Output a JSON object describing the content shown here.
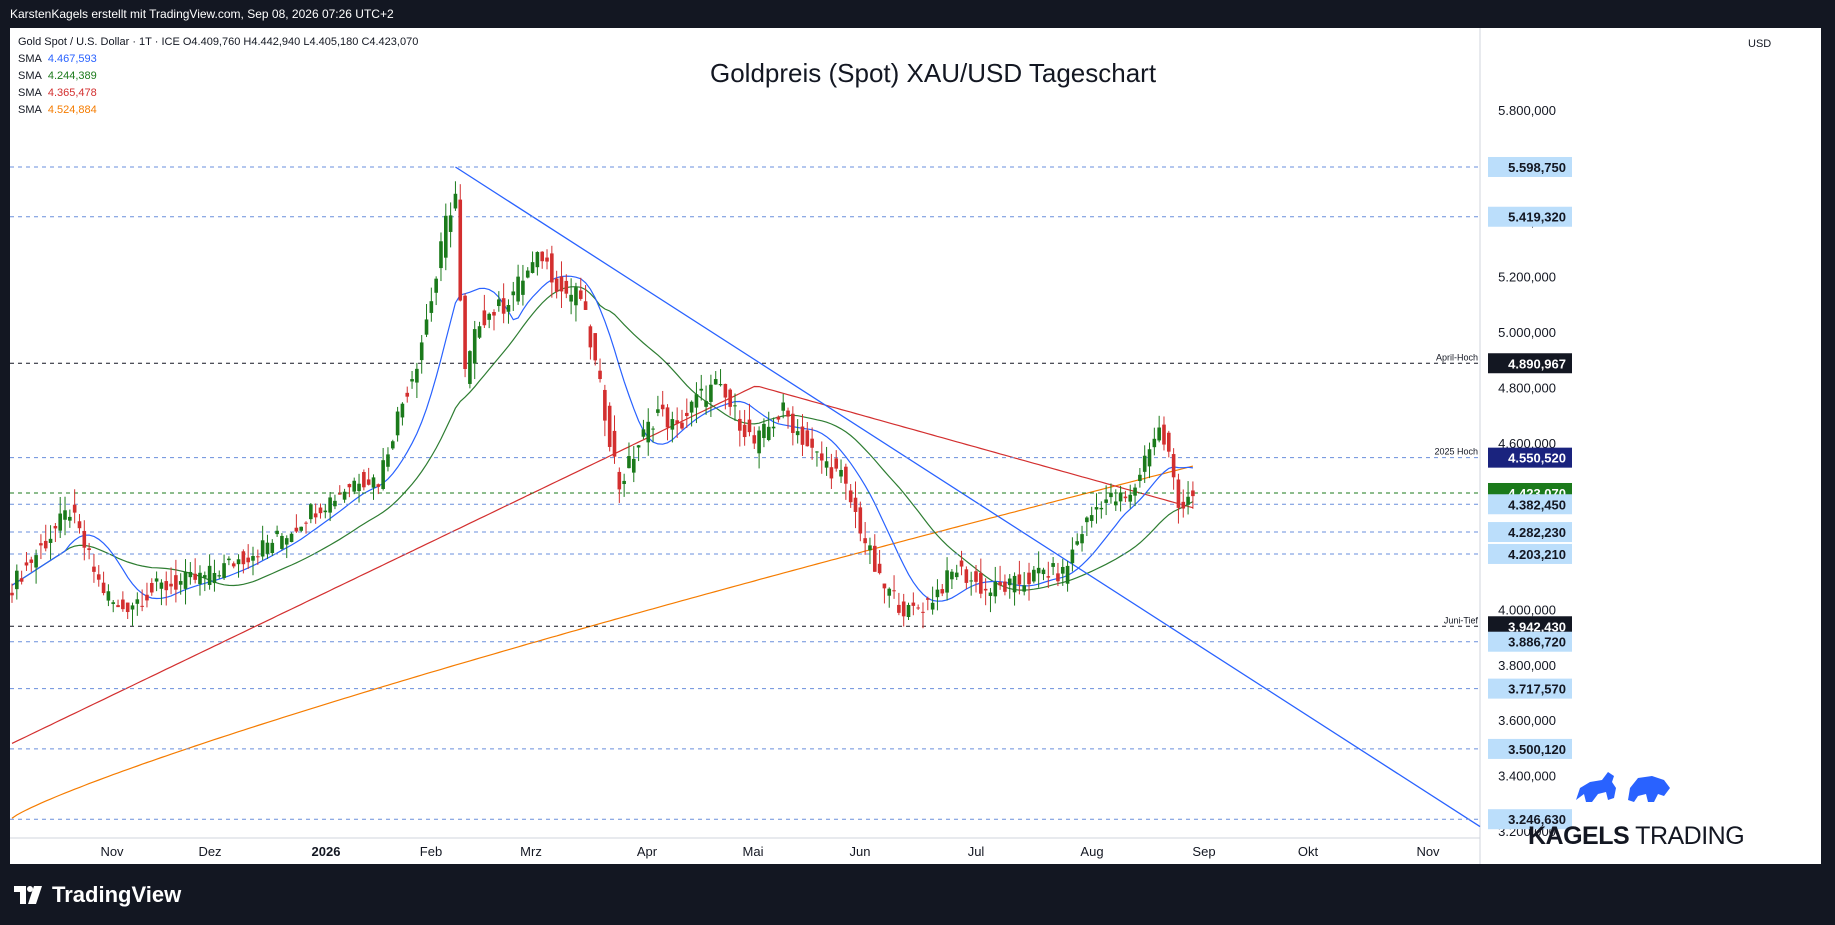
{
  "header": {
    "text": "KarstenKagels erstellt mit TradingView.com, Sep 08, 2026 07:26 UTC+2"
  },
  "legend": {
    "symbol_line": "Gold Spot / U.S. Dollar · 1T · ICE  O4.409,760  H4.442,940  L4.405,180  C4.423,070",
    "smas": [
      {
        "label": "SMA",
        "value": "4.467,593",
        "color": "#2962ff"
      },
      {
        "label": "SMA",
        "value": "4.244,389",
        "color": "#1b7a1b"
      },
      {
        "label": "SMA",
        "value": "4.365,478",
        "color": "#d32f2f"
      },
      {
        "label": "SMA",
        "value": "4.524,884",
        "color": "#f57c00"
      }
    ]
  },
  "axis_unit": "USD",
  "footer": {
    "brand": "TradingView"
  },
  "watermark": {
    "brand_bold": "KAGELS",
    "brand_light": " TRADING"
  },
  "chart_data": {
    "type": "candlestick",
    "title": "Goldpreis (Spot) XAU/USD Tageschart",
    "ylabel": "USD",
    "ylim": [
      3150,
      6100
    ],
    "x_tick_labels": [
      "Nov",
      "Dez",
      "2026",
      "Feb",
      "Mrz",
      "Apr",
      "Mai",
      "Jun",
      "Jul",
      "Aug",
      "Sep",
      "Okt",
      "Nov"
    ],
    "y_tick_labels": [
      "3.200,000",
      "3.400,000",
      "3.600,000",
      "3.800,000",
      "4.000,000",
      "4.200,000",
      "4.400,000",
      "4.600,000",
      "4.800,000",
      "5.000,000",
      "5.200,000",
      "5.400,000",
      "5.600,000",
      "5.800,000"
    ],
    "y_ticks": [
      3200,
      3400,
      3600,
      3800,
      4000,
      4200,
      4400,
      4600,
      4800,
      5000,
      5200,
      5400,
      5600,
      5800
    ],
    "colors": {
      "up": "#1b7a1b",
      "down": "#d32f2f",
      "sma20": "#2962ff",
      "sma50": "#2e7d32",
      "sma100": "#d32f2f",
      "sma200": "#f57c00",
      "trendline": "#2962ff"
    },
    "price_levels": [
      {
        "value": 5598.75,
        "label": "5.598,750",
        "style": "blue",
        "note": ""
      },
      {
        "value": 5419.32,
        "label": "5.419,320",
        "style": "blue",
        "note": ""
      },
      {
        "value": 4890.967,
        "label": "4.890,967",
        "style": "black",
        "note": "April-Hoch"
      },
      {
        "value": 4550.52,
        "label": "4.550,520",
        "style": "navy",
        "note": "2025 Hoch"
      },
      {
        "value": 4423.07,
        "label": "4.423,070",
        "style": "green",
        "note": ""
      },
      {
        "value": 4382.45,
        "label": "4.382,450",
        "style": "blue",
        "note": ""
      },
      {
        "value": 4282.23,
        "label": "4.282,230",
        "style": "blue",
        "note": ""
      },
      {
        "value": 4203.21,
        "label": "4.203,210",
        "style": "blue",
        "note": ""
      },
      {
        "value": 3942.43,
        "label": "3.942,430",
        "style": "black",
        "note": "Juni-Tief"
      },
      {
        "value": 3886.72,
        "label": "3.886,720",
        "style": "blue",
        "note": ""
      },
      {
        "value": 3717.57,
        "label": "3.717,570",
        "style": "blue",
        "note": ""
      },
      {
        "value": 3500.12,
        "label": "3.500,120",
        "style": "blue",
        "note": ""
      },
      {
        "value": 3246.63,
        "label": "3.246,630",
        "style": "blue",
        "note": ""
      }
    ],
    "series": [
      {
        "name": "Gold Spot / U.S. Dollar",
        "close_anchors": [
          [
            0,
            4090
          ],
          [
            12,
            4360
          ],
          [
            18,
            4100
          ],
          [
            22,
            4000
          ],
          [
            30,
            4080
          ],
          [
            40,
            4120
          ],
          [
            50,
            4210
          ],
          [
            58,
            4290
          ],
          [
            62,
            4360
          ],
          [
            66,
            4400
          ],
          [
            72,
            4480
          ],
          [
            76,
            4470
          ],
          [
            80,
            4700
          ],
          [
            84,
            4900
          ],
          [
            88,
            5200
          ],
          [
            90,
            5400
          ],
          [
            92,
            5500
          ],
          [
            93,
            5100
          ],
          [
            94,
            4850
          ],
          [
            97,
            5050
          ],
          [
            102,
            5100
          ],
          [
            106,
            5200
          ],
          [
            110,
            5280
          ],
          [
            114,
            5150
          ],
          [
            118,
            5130
          ],
          [
            122,
            4800
          ],
          [
            126,
            4450
          ],
          [
            130,
            4600
          ],
          [
            134,
            4720
          ],
          [
            138,
            4650
          ],
          [
            142,
            4760
          ],
          [
            146,
            4810
          ],
          [
            150,
            4710
          ],
          [
            154,
            4600
          ],
          [
            160,
            4720
          ],
          [
            166,
            4570
          ],
          [
            172,
            4480
          ],
          [
            176,
            4300
          ],
          [
            180,
            4100
          ],
          [
            186,
            3990
          ],
          [
            190,
            4030
          ],
          [
            196,
            4150
          ],
          [
            202,
            4070
          ],
          [
            208,
            4090
          ],
          [
            214,
            4140
          ],
          [
            218,
            4130
          ],
          [
            222,
            4290
          ],
          [
            226,
            4400
          ],
          [
            232,
            4400
          ],
          [
            236,
            4600
          ],
          [
            238,
            4650
          ],
          [
            240,
            4560
          ],
          [
            242,
            4370
          ],
          [
            244,
            4420
          ],
          [
            245,
            4423
          ]
        ]
      }
    ],
    "moving_averages": [
      {
        "name": "SMA 20",
        "value": 4467.593
      },
      {
        "name": "SMA 50",
        "value": 4244.389
      },
      {
        "name": "SMA 100",
        "value": 4365.478
      },
      {
        "name": "SMA 200",
        "value": 4524.884
      }
    ]
  }
}
